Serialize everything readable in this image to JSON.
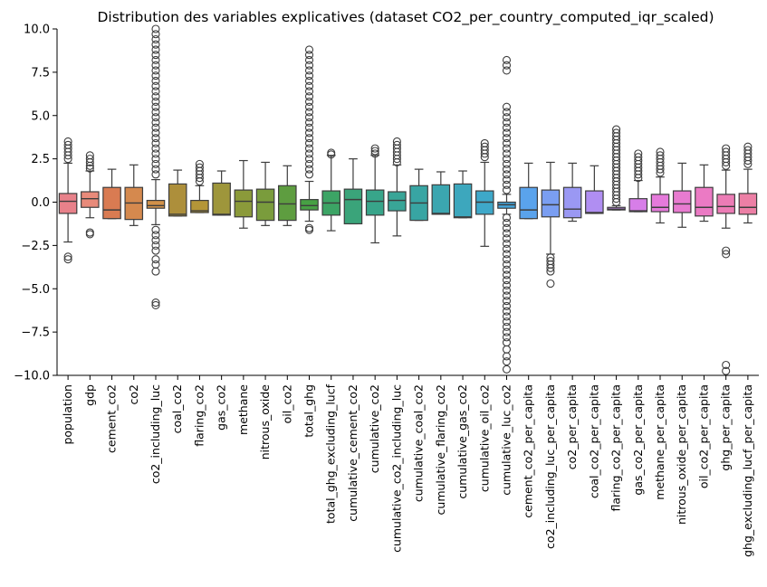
{
  "chart_data": {
    "type": "box",
    "title": "Distribution des variables explicatives (dataset CO2_per_country_computed_iqr_scaled)",
    "xlabel": "",
    "ylabel": "",
    "ylim": [
      -10,
      10
    ],
    "yticks": [
      -10.0,
      -7.5,
      -5.0,
      -2.5,
      0.0,
      2.5,
      5.0,
      7.5,
      10.0
    ],
    "ytick_labels": [
      "−10.0",
      "−7.5",
      "−5.0",
      "−2.5",
      "0.0",
      "2.5",
      "5.0",
      "7.5",
      "10.0"
    ],
    "grid": false,
    "legend": "none",
    "series": [
      {
        "name": "population",
        "color": "#e8818a",
        "q1": -0.65,
        "median": 0.05,
        "q3": 0.5,
        "wlow": -2.3,
        "whigh": 2.25,
        "outliers": [
          3.5,
          3.3,
          3.1,
          2.9,
          2.7,
          2.5,
          -3.15,
          -3.3
        ]
      },
      {
        "name": "gdp",
        "color": "#e88a7a",
        "q1": -0.3,
        "median": 0.2,
        "q3": 0.6,
        "wlow": -0.9,
        "whigh": 1.8,
        "outliers": [
          2.7,
          2.5,
          2.3,
          2.1,
          1.95,
          -1.75,
          -1.85
        ]
      },
      {
        "name": "cement_co2",
        "color": "#d97b52",
        "q1": -0.95,
        "median": -0.45,
        "q3": 0.85,
        "wlow": -0.95,
        "whigh": 1.9,
        "outliers": []
      },
      {
        "name": "co2",
        "color": "#d5894e",
        "q1": -1.0,
        "median": -0.05,
        "q3": 0.85,
        "wlow": -1.35,
        "whigh": 2.15,
        "outliers": []
      },
      {
        "name": "co2_including_luc",
        "color": "#d1914a",
        "q1": -0.35,
        "median": -0.2,
        "q3": 0.1,
        "wlow": -1.3,
        "whigh": 1.3,
        "outliers": [
          10.0,
          9.7,
          9.4,
          9.1,
          8.8,
          8.5,
          8.2,
          7.9,
          7.6,
          7.3,
          7.0,
          6.7,
          6.4,
          6.1,
          5.8,
          5.5,
          5.2,
          4.9,
          4.6,
          4.3,
          4.0,
          3.7,
          3.4,
          3.1,
          2.8,
          2.5,
          2.2,
          1.9,
          1.6,
          -1.6,
          -1.9,
          -2.2,
          -2.5,
          -2.8,
          -3.3,
          -3.6,
          -4.0,
          -5.8,
          -5.95
        ]
      },
      {
        "name": "coal_co2",
        "color": "#ad8f3b",
        "q1": -0.8,
        "median": -0.7,
        "q3": 1.05,
        "wlow": -0.8,
        "whigh": 1.85,
        "outliers": []
      },
      {
        "name": "flaring_co2",
        "color": "#b49638",
        "q1": -0.6,
        "median": -0.5,
        "q3": 0.1,
        "wlow": -0.6,
        "whigh": 0.95,
        "outliers": [
          2.2,
          2.0,
          1.8,
          1.6,
          1.4,
          1.2
        ]
      },
      {
        "name": "gas_co2",
        "color": "#9e963b",
        "q1": -0.75,
        "median": -0.7,
        "q3": 1.1,
        "wlow": -0.75,
        "whigh": 1.8,
        "outliers": []
      },
      {
        "name": "methane",
        "color": "#8b9a3a",
        "q1": -0.85,
        "median": 0.05,
        "q3": 0.7,
        "wlow": -1.5,
        "whigh": 2.4,
        "outliers": []
      },
      {
        "name": "nitrous_oxide",
        "color": "#7a9c3c",
        "q1": -1.05,
        "median": 0.0,
        "q3": 0.75,
        "wlow": -1.35,
        "whigh": 2.3,
        "outliers": []
      },
      {
        "name": "oil_co2",
        "color": "#5e9d40",
        "q1": -1.05,
        "median": -0.1,
        "q3": 0.95,
        "wlow": -1.35,
        "whigh": 2.1,
        "outliers": []
      },
      {
        "name": "total_ghg",
        "color": "#47a044",
        "q1": -0.45,
        "median": -0.2,
        "q3": 0.15,
        "wlow": -1.1,
        "whigh": 1.2,
        "outliers": [
          8.8,
          8.5,
          8.2,
          7.9,
          7.6,
          7.3,
          7.0,
          6.7,
          6.4,
          6.1,
          5.8,
          5.5,
          5.2,
          4.9,
          4.6,
          4.3,
          4.0,
          3.7,
          3.4,
          3.1,
          2.8,
          2.5,
          2.2,
          1.9,
          1.6,
          -1.5,
          -1.6
        ]
      },
      {
        "name": "total_ghg_excluding_lucf",
        "color": "#3ca465",
        "q1": -0.75,
        "median": -0.05,
        "q3": 0.65,
        "wlow": -1.65,
        "whigh": 2.7,
        "outliers": [
          2.85,
          2.75
        ]
      },
      {
        "name": "cumulative_cement_co2",
        "color": "#3aa47a",
        "q1": -1.25,
        "median": 0.15,
        "q3": 0.75,
        "wlow": -1.25,
        "whigh": 2.5,
        "outliers": []
      },
      {
        "name": "cumulative_co2",
        "color": "#38a58a",
        "q1": -0.75,
        "median": 0.05,
        "q3": 0.7,
        "wlow": -2.35,
        "whigh": 2.7,
        "outliers": [
          3.1,
          2.95,
          2.8
        ]
      },
      {
        "name": "cumulative_co2_including_luc",
        "color": "#39a597",
        "q1": -0.5,
        "median": 0.1,
        "q3": 0.6,
        "wlow": -1.95,
        "whigh": 2.15,
        "outliers": [
          3.5,
          3.3,
          3.1,
          2.9,
          2.7,
          2.5,
          2.3
        ]
      },
      {
        "name": "cumulative_coal_co2",
        "color": "#38a5a3",
        "q1": -1.05,
        "median": -0.05,
        "q3": 0.95,
        "wlow": -1.05,
        "whigh": 1.9,
        "outliers": []
      },
      {
        "name": "cumulative_flaring_co2",
        "color": "#3ba6b0",
        "q1": -0.7,
        "median": -0.65,
        "q3": 1.0,
        "wlow": -0.7,
        "whigh": 1.75,
        "outliers": []
      },
      {
        "name": "cumulative_gas_co2",
        "color": "#3da7bd",
        "q1": -0.9,
        "median": -0.85,
        "q3": 1.05,
        "wlow": -0.9,
        "whigh": 1.8,
        "outliers": []
      },
      {
        "name": "cumulative_oil_co2",
        "color": "#3ea8c9",
        "q1": -0.7,
        "median": 0.0,
        "q3": 0.65,
        "wlow": -2.55,
        "whigh": 2.3,
        "outliers": [
          3.4,
          3.2,
          3.0,
          2.8,
          2.6
        ]
      },
      {
        "name": "cumulative_luc_co2",
        "color": "#44a6dc",
        "q1": -0.35,
        "median": -0.15,
        "q3": 0.0,
        "wlow": -0.7,
        "whigh": 0.45,
        "outliers": [
          8.2,
          7.9,
          7.6,
          5.5,
          5.2,
          4.9,
          4.6,
          4.3,
          4.0,
          3.7,
          3.4,
          3.1,
          2.8,
          2.5,
          2.2,
          1.9,
          1.6,
          1.3,
          1.0,
          0.7,
          -0.9,
          -1.2,
          -1.5,
          -1.8,
          -2.1,
          -2.4,
          -2.7,
          -3.0,
          -3.3,
          -3.6,
          -3.9,
          -4.2,
          -4.5,
          -4.8,
          -5.1,
          -5.4,
          -5.7,
          -6.0,
          -6.3,
          -6.6,
          -6.9,
          -7.2,
          -7.5,
          -7.8,
          -8.1,
          -8.5,
          -8.9,
          -9.2,
          -9.65
        ]
      },
      {
        "name": "cement_co2_per_capita",
        "color": "#5aa3ec",
        "q1": -0.95,
        "median": -0.45,
        "q3": 0.85,
        "wlow": -0.95,
        "whigh": 2.25,
        "outliers": []
      },
      {
        "name": "co2_including_luc_per_capita",
        "color": "#7a9ef2",
        "q1": -0.85,
        "median": -0.15,
        "q3": 0.7,
        "wlow": -3.0,
        "whigh": 2.3,
        "outliers": [
          -3.2,
          -3.4,
          -3.6,
          -3.8,
          -4.0,
          -4.7
        ]
      },
      {
        "name": "co2_per_capita",
        "color": "#9a98f3",
        "q1": -0.9,
        "median": -0.4,
        "q3": 0.85,
        "wlow": -1.1,
        "whigh": 2.25,
        "outliers": []
      },
      {
        "name": "coal_co2_per_capita",
        "color": "#b08ef2",
        "q1": -0.65,
        "median": -0.6,
        "q3": 0.65,
        "wlow": -0.65,
        "whigh": 2.1,
        "outliers": []
      },
      {
        "name": "flaring_co2_per_capita",
        "color": "#c487ee",
        "q1": -0.45,
        "median": -0.4,
        "q3": -0.3,
        "wlow": -0.45,
        "whigh": -0.2,
        "outliers": [
          4.2,
          4.0,
          3.8,
          3.6,
          3.4,
          3.2,
          3.0,
          2.8,
          2.6,
          2.4,
          2.2,
          2.0,
          1.8,
          1.6,
          1.4,
          1.2,
          1.0,
          0.8,
          0.6,
          0.4,
          0.2,
          0.0
        ]
      },
      {
        "name": "gas_co2_per_capita",
        "color": "#d77ee8",
        "q1": -0.55,
        "median": -0.5,
        "q3": 0.2,
        "wlow": -0.55,
        "whigh": 1.25,
        "outliers": [
          2.8,
          2.6,
          2.4,
          2.2,
          2.0,
          1.8,
          1.6,
          1.4
        ]
      },
      {
        "name": "methane_per_capita",
        "color": "#e57adb",
        "q1": -0.55,
        "median": -0.3,
        "q3": 0.45,
        "wlow": -1.2,
        "whigh": 1.45,
        "outliers": [
          2.9,
          2.7,
          2.5,
          2.3,
          2.1,
          1.9,
          1.7
        ]
      },
      {
        "name": "nitrous_oxide_per_capita",
        "color": "#e87bd0",
        "q1": -0.6,
        "median": -0.1,
        "q3": 0.65,
        "wlow": -1.45,
        "whigh": 2.25,
        "outliers": []
      },
      {
        "name": "oil_co2_per_capita",
        "color": "#eb7ac4",
        "q1": -0.8,
        "median": -0.3,
        "q3": 0.85,
        "wlow": -1.1,
        "whigh": 2.15,
        "outliers": []
      },
      {
        "name": "ghg_per_capita",
        "color": "#ec7cb5",
        "q1": -0.65,
        "median": -0.25,
        "q3": 0.45,
        "wlow": -1.5,
        "whigh": 1.85,
        "outliers": [
          3.1,
          2.9,
          2.7,
          2.5,
          2.3,
          2.1,
          -2.8,
          -3.0,
          -9.4,
          -9.75
        ]
      },
      {
        "name": "ghg_excluding_lucf_per_capita",
        "color": "#ec7fa5",
        "q1": -0.7,
        "median": -0.3,
        "q3": 0.5,
        "wlow": -1.2,
        "whigh": 1.9,
        "outliers": [
          3.2,
          3.0,
          2.8,
          2.6,
          2.4,
          2.2
        ]
      }
    ]
  }
}
